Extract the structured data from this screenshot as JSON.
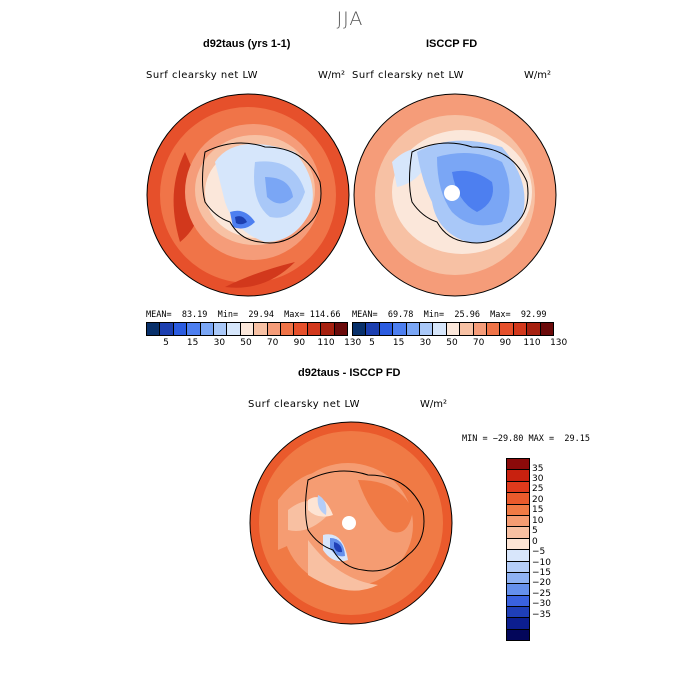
{
  "season": "JJA",
  "panels": [
    {
      "title": "d92taus (yrs 1-1)",
      "variable": "Surf clearsky net LW",
      "units": "W/m²",
      "stats": "MEAN=  83.19  Min=  29.94  Max= 114.66"
    },
    {
      "title": "ISCCP FD",
      "variable": "Surf clearsky net LW",
      "units": "W/m²",
      "stats": "MEAN=  69.78  Min=  25.96  Max=  92.99"
    }
  ],
  "difference": {
    "title": "d92taus - ISCCP FD",
    "variable": "Surf clearsky net LW",
    "units": "W/m²",
    "stats": "MIN = −29.80 MAX =  29.15"
  },
  "colorbar_top": {
    "tick_labels": [
      "5",
      "15",
      "30",
      "50",
      "70",
      "90",
      "110",
      "130"
    ],
    "colors": [
      "#08306b",
      "#1c3fb0",
      "#2b5ce0",
      "#4d7ff0",
      "#7aa6f5",
      "#a9c8f8",
      "#d6e6fb",
      "#fbe7da",
      "#f7c1a4",
      "#f59c79",
      "#f07448",
      "#e6502b",
      "#d2381c",
      "#a6200f",
      "#6b0a0a"
    ]
  },
  "colorbar_diff": {
    "tick_labels": [
      "35",
      "30",
      "25",
      "20",
      "15",
      "10",
      "5",
      "0",
      "−5",
      "−10",
      "−15",
      "−20",
      "−25",
      "−30",
      "−35"
    ],
    "colors": [
      "#8b0a0a",
      "#c8210f",
      "#e03a1c",
      "#ea5a2c",
      "#f07a45",
      "#f59c72",
      "#f8c0a2",
      "#fde4d4",
      "#d8e6fb",
      "#b4cdf8",
      "#8eb1f3",
      "#6590ec",
      "#3a62df",
      "#1f3fb8",
      "#0c1e8f",
      "#03065a"
    ]
  }
}
